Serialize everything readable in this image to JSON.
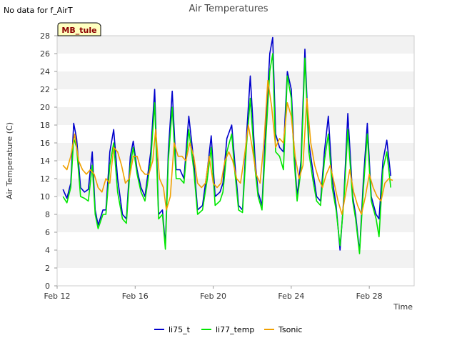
{
  "page": {
    "note": "No data for f_AirT"
  },
  "chart_data": {
    "type": "line",
    "title": "Air Temperatures",
    "xlabel": "Time",
    "ylabel": "Air Temperature (C)",
    "badge": "MB_tule",
    "ylim": [
      0,
      28
    ],
    "yticks": [
      0,
      2,
      4,
      6,
      8,
      10,
      12,
      14,
      16,
      18,
      20,
      22,
      24,
      26,
      28
    ],
    "xlim": [
      12,
      30.3
    ],
    "xticks": [
      {
        "value": 12,
        "label": "Feb 12"
      },
      {
        "value": 16,
        "label": "Feb 16"
      },
      {
        "value": 20,
        "label": "Feb 20"
      },
      {
        "value": 24,
        "label": "Feb 24"
      },
      {
        "value": 28,
        "label": "Feb 28"
      }
    ],
    "x_unit": "day of February",
    "grid": "horizontal bands",
    "legend_position": "bottom",
    "colors": {
      "li75_t": "#0000cc",
      "li77_temp": "#00e600",
      "Tsonic": "#f0a000",
      "band": "#f2f2f2"
    },
    "series": [
      {
        "name": "li75_t",
        "x": [
          12.3,
          12.5,
          12.7,
          12.85,
          13.0,
          13.2,
          13.4,
          13.6,
          13.8,
          13.95,
          14.1,
          14.35,
          14.5,
          14.7,
          14.9,
          15.1,
          15.35,
          15.55,
          15.75,
          15.9,
          16.1,
          16.3,
          16.5,
          16.8,
          17.0,
          17.2,
          17.4,
          17.55,
          17.7,
          17.9,
          18.1,
          18.3,
          18.5,
          18.75,
          19.0,
          19.2,
          19.45,
          19.7,
          19.9,
          20.1,
          20.35,
          20.5,
          20.7,
          20.95,
          21.1,
          21.3,
          21.5,
          21.7,
          21.9,
          22.15,
          22.3,
          22.5,
          22.7,
          22.9,
          23.05,
          23.2,
          23.4,
          23.6,
          23.8,
          24.0,
          24.15,
          24.3,
          24.5,
          24.7,
          24.9,
          25.1,
          25.3,
          25.5,
          25.7,
          25.9,
          26.1,
          26.3,
          26.5,
          26.7,
          26.9,
          27.15,
          27.3,
          27.5,
          27.7,
          27.9,
          28.1,
          28.35,
          28.5,
          28.7,
          28.9,
          29.1
        ],
        "y": [
          10.8,
          9.8,
          11.5,
          18.2,
          16.5,
          11.0,
          10.5,
          10.8,
          15.0,
          8.5,
          6.8,
          8.5,
          8.5,
          15.0,
          17.5,
          12.0,
          8.0,
          7.5,
          14.5,
          16.2,
          13.0,
          11.0,
          10.0,
          15.0,
          22.0,
          8.0,
          8.5,
          4.5,
          15.0,
          21.8,
          13.0,
          13.0,
          12.0,
          19.0,
          14.0,
          8.5,
          9.0,
          13.0,
          16.8,
          10.0,
          10.5,
          11.5,
          16.5,
          18.0,
          14.0,
          9.0,
          8.5,
          16.5,
          23.5,
          14.0,
          10.5,
          9.0,
          18.0,
          26.0,
          27.8,
          17.0,
          15.5,
          15.0,
          24.0,
          22.0,
          15.0,
          10.0,
          14.0,
          26.5,
          16.0,
          13.0,
          10.0,
          9.5,
          15.0,
          19.0,
          12.0,
          9.0,
          4.0,
          10.0,
          19.3,
          10.0,
          8.0,
          3.8,
          12.0,
          18.2,
          10.0,
          8.0,
          7.5,
          14.0,
          16.3,
          12.3
        ]
      },
      {
        "name": "li77_temp",
        "x": [
          12.3,
          12.5,
          12.7,
          12.85,
          13.0,
          13.2,
          13.4,
          13.6,
          13.8,
          13.95,
          14.1,
          14.35,
          14.5,
          14.7,
          14.9,
          15.1,
          15.35,
          15.55,
          15.75,
          15.9,
          16.1,
          16.3,
          16.5,
          16.8,
          17.0,
          17.2,
          17.4,
          17.55,
          17.7,
          17.9,
          18.1,
          18.3,
          18.5,
          18.75,
          19.0,
          19.2,
          19.45,
          19.7,
          19.9,
          20.1,
          20.35,
          20.5,
          20.7,
          20.95,
          21.1,
          21.3,
          21.5,
          21.7,
          21.9,
          22.15,
          22.3,
          22.5,
          22.7,
          22.9,
          23.05,
          23.2,
          23.4,
          23.6,
          23.8,
          24.0,
          24.15,
          24.3,
          24.5,
          24.7,
          24.9,
          25.1,
          25.3,
          25.5,
          25.7,
          25.9,
          26.1,
          26.3,
          26.5,
          26.7,
          26.9,
          27.15,
          27.3,
          27.5,
          27.7,
          27.9,
          28.1,
          28.35,
          28.5,
          28.7,
          28.9,
          29.1
        ],
        "y": [
          10.0,
          9.3,
          11.0,
          16.5,
          15.5,
          10.0,
          9.8,
          9.5,
          13.5,
          8.0,
          6.4,
          8.0,
          8.0,
          13.5,
          16.0,
          10.5,
          7.5,
          7.0,
          13.5,
          15.5,
          12.5,
          10.5,
          9.5,
          14.0,
          20.5,
          7.5,
          8.0,
          4.1,
          14.0,
          20.0,
          12.0,
          12.0,
          11.5,
          17.5,
          13.0,
          8.0,
          8.5,
          12.0,
          15.5,
          9.0,
          9.5,
          10.5,
          15.0,
          17.0,
          13.0,
          8.5,
          8.2,
          15.5,
          21.0,
          13.0,
          10.0,
          8.5,
          16.5,
          24.0,
          26.0,
          15.0,
          14.5,
          13.0,
          23.5,
          21.0,
          14.0,
          9.5,
          13.0,
          25.5,
          15.0,
          12.0,
          9.5,
          9.0,
          14.0,
          17.0,
          11.0,
          8.5,
          4.5,
          9.5,
          17.5,
          9.5,
          7.5,
          3.6,
          11.0,
          17.0,
          9.5,
          7.5,
          5.5,
          13.0,
          15.0,
          11.0
        ]
      },
      {
        "name": "Tsonic",
        "x": [
          12.3,
          12.5,
          12.7,
          12.9,
          13.1,
          13.3,
          13.5,
          13.7,
          13.9,
          14.1,
          14.3,
          14.5,
          14.7,
          14.9,
          15.1,
          15.3,
          15.5,
          15.7,
          15.9,
          16.1,
          16.3,
          16.5,
          16.7,
          16.9,
          17.05,
          17.25,
          17.45,
          17.6,
          17.8,
          18.0,
          18.2,
          18.4,
          18.6,
          18.8,
          19.0,
          19.2,
          19.4,
          19.6,
          19.8,
          20.0,
          20.2,
          20.4,
          20.6,
          20.8,
          21.0,
          21.2,
          21.4,
          21.6,
          21.8,
          22.0,
          22.2,
          22.4,
          22.6,
          22.8,
          23.0,
          23.2,
          23.4,
          23.6,
          23.8,
          24.0,
          24.2,
          24.4,
          24.6,
          24.8,
          25.0,
          25.2,
          25.4,
          25.6,
          25.8,
          26.0,
          26.2,
          26.4,
          26.6,
          26.8,
          27.0,
          27.2,
          27.4,
          27.6,
          27.8,
          28.0,
          28.2,
          28.4,
          28.6,
          28.8,
          29.0,
          29.2
        ],
        "y": [
          13.5,
          13.0,
          14.5,
          17.0,
          14.0,
          13.0,
          12.5,
          13.0,
          12.5,
          11.0,
          10.5,
          12.0,
          11.5,
          15.5,
          15.0,
          13.5,
          11.5,
          12.0,
          14.5,
          14.5,
          13.0,
          12.5,
          12.5,
          14.0,
          17.5,
          12.0,
          11.0,
          8.5,
          10.0,
          16.0,
          14.5,
          14.5,
          14.0,
          16.0,
          14.5,
          11.5,
          11.0,
          11.5,
          14.5,
          11.5,
          11.0,
          11.5,
          14.0,
          15.0,
          14.0,
          12.0,
          11.5,
          14.5,
          18.0,
          15.5,
          12.5,
          11.5,
          16.0,
          23.0,
          20.0,
          15.5,
          16.5,
          16.0,
          20.5,
          19.0,
          14.5,
          12.0,
          13.5,
          21.0,
          16.0,
          13.5,
          12.0,
          11.0,
          12.5,
          13.5,
          11.5,
          9.5,
          8.0,
          10.5,
          13.0,
          10.5,
          9.0,
          8.0,
          10.0,
          12.5,
          11.0,
          10.0,
          9.5,
          11.5,
          12.0,
          11.8
        ]
      }
    ]
  }
}
